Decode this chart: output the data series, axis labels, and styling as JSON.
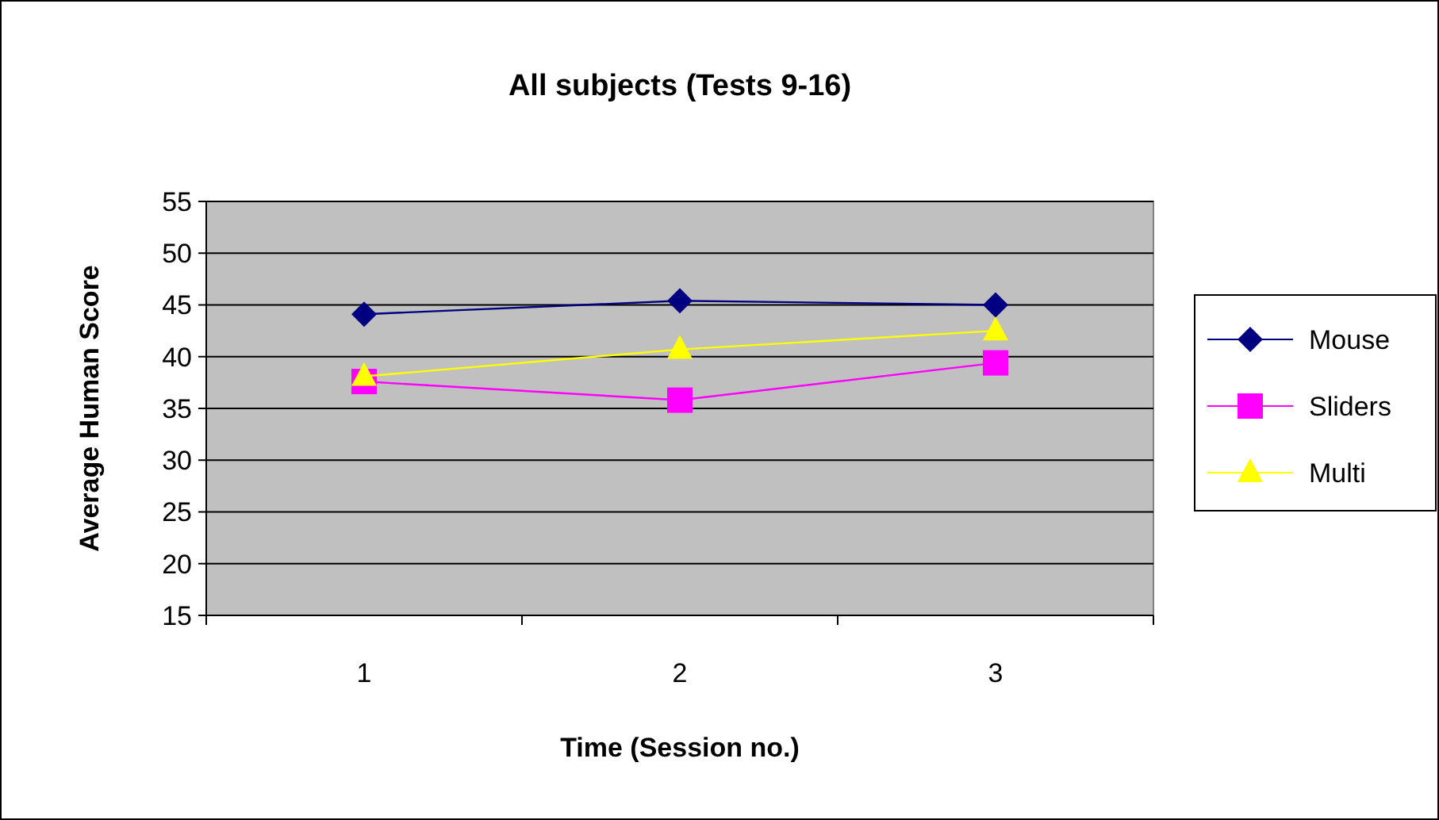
{
  "chart_data": {
    "type": "line",
    "title": "All subjects  (Tests 9-16)",
    "xlabel": "Time (Session no.)",
    "ylabel": "Average Human Score",
    "categories": [
      "1",
      "2",
      "3"
    ],
    "series": [
      {
        "name": "Mouse",
        "color": "#000080",
        "marker": "diamond",
        "values": [
          44.1,
          45.4,
          45.0
        ]
      },
      {
        "name": "Sliders",
        "color": "#ff00ff",
        "marker": "square",
        "values": [
          37.6,
          35.8,
          39.4
        ]
      },
      {
        "name": "Multi",
        "color": "#ffff00",
        "marker": "triangle",
        "values": [
          38.1,
          40.7,
          42.5
        ]
      }
    ],
    "ylim": [
      15,
      55
    ],
    "yticks": [
      15,
      20,
      25,
      30,
      35,
      40,
      45,
      50,
      55
    ],
    "grid": "y",
    "legend": "right"
  }
}
